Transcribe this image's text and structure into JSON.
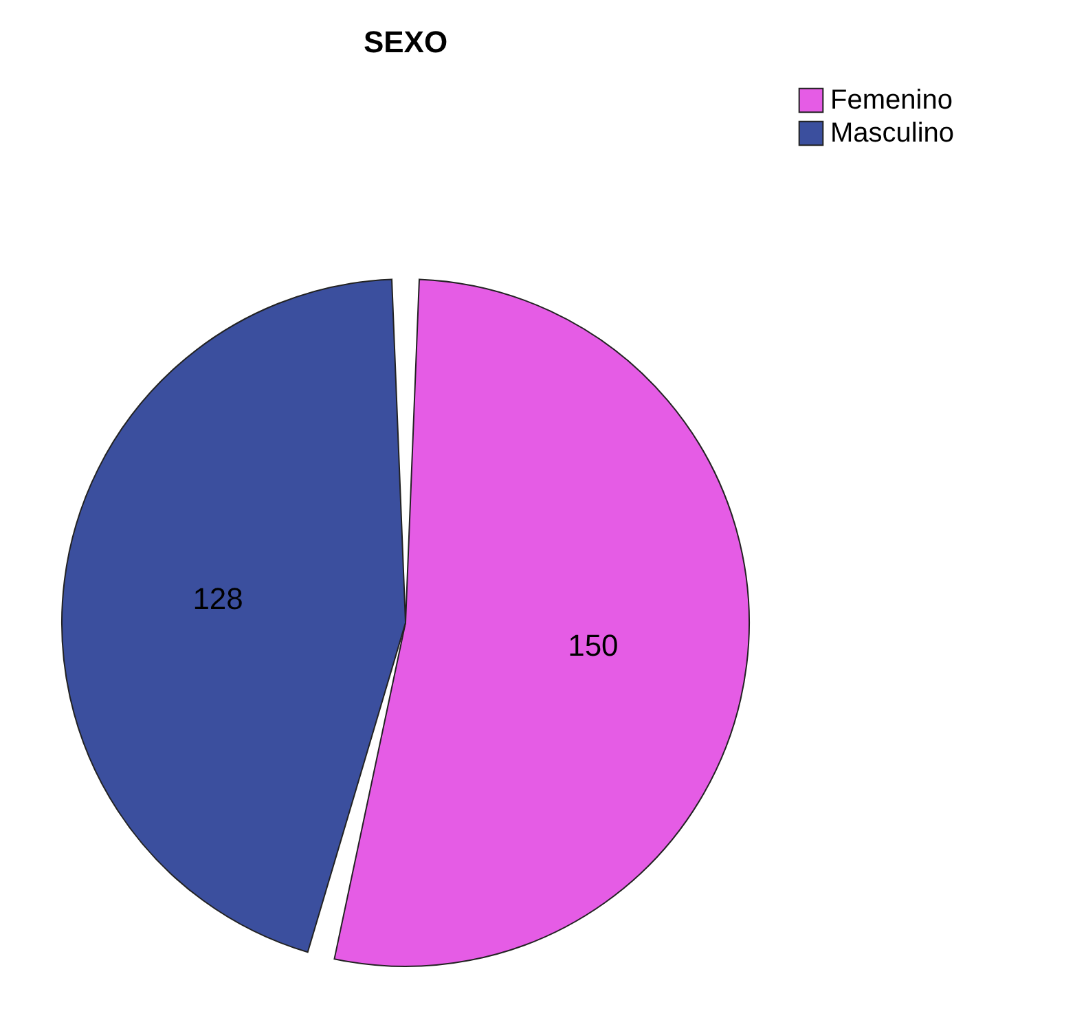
{
  "chart_data": {
    "type": "pie",
    "title": "SEXO",
    "categories": [
      "Femenino",
      "Masculino"
    ],
    "values": [
      150,
      128
    ],
    "colors": [
      "#e55ce5",
      "#3b4f9e"
    ],
    "data_labels": true,
    "legend": "top right"
  }
}
